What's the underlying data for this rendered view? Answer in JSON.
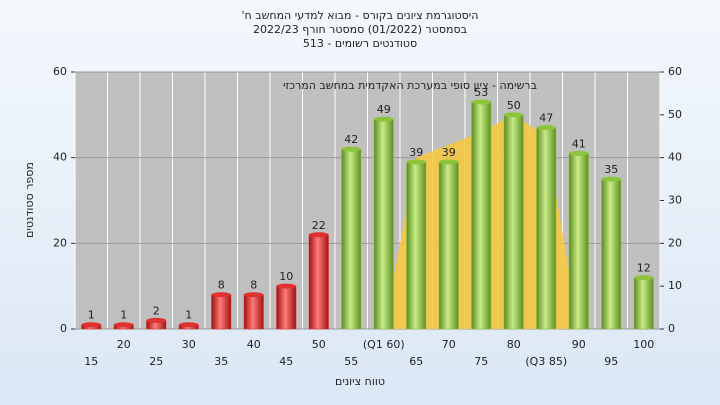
{
  "chart_data": {
    "type": "bar",
    "title": "היסטוגרמת ציונים בקורס - מבוא למדעי המחשב ח'",
    "subtitle": "בסמסטר (01/2022) סמסטר חורף 2022/23",
    "subtitle2": "סטודנטים רשומים - 513",
    "annotation": "ברשימה - ציון סופי במערכת האקדמית במחשב המרכזי",
    "x_label": "טווח ציונים",
    "y_label": "מספר סטודנטים",
    "categories": [
      "15",
      "20",
      "25",
      "30",
      "35",
      "40",
      "45",
      "50",
      "55",
      "(Q1 60)",
      "65",
      "70",
      "75",
      "80",
      "(Q3 85)",
      "90",
      "95",
      "100"
    ],
    "series": [
      {
        "type": "bar",
        "values": [
          1,
          1,
          2,
          1,
          8,
          8,
          10,
          22,
          42,
          49,
          39,
          39,
          53,
          50,
          47,
          41,
          35,
          12
        ],
        "colors": [
          "#e03030",
          "#e03030",
          "#e03030",
          "#e03030",
          "#e03030",
          "#e03030",
          "#e03030",
          "#e03030",
          "#8cc43c",
          "#8cc43c",
          "#8cc43c",
          "#8cc43c",
          "#8cc43c",
          "#8cc43c",
          "#8cc43c",
          "#8cc43c",
          "#8cc43c",
          "#8cc43c"
        ]
      },
      {
        "type": "area",
        "color": "#f5c842",
        "values": [
          null,
          null,
          null,
          null,
          null,
          null,
          null,
          null,
          null,
          0,
          40,
          43,
          46,
          50,
          45,
          0,
          null,
          null
        ]
      }
    ],
    "ylim": [
      0,
      60
    ],
    "yticks": [
      0,
      20,
      40,
      60
    ],
    "y2lim": [
      0,
      60
    ],
    "y2ticks": [
      0,
      10,
      20,
      30,
      40,
      50,
      60
    ],
    "grid": true
  }
}
